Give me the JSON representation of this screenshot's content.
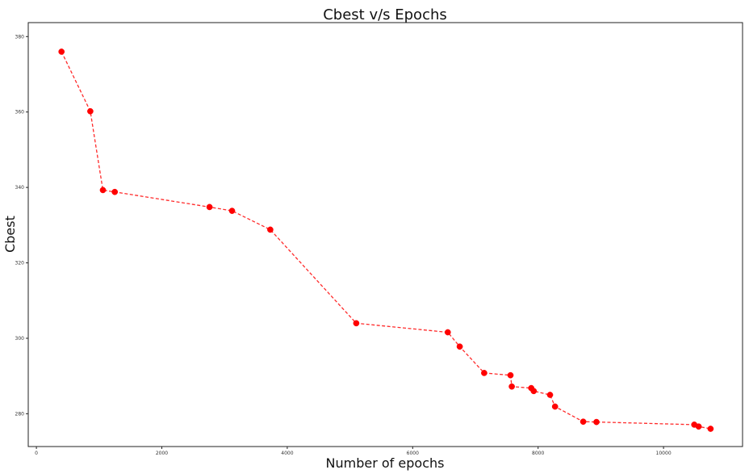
{
  "chart_data": {
    "type": "line",
    "title": "Cbest v/s Epochs",
    "xlabel": "Number of epochs",
    "ylabel": "Cbest",
    "xlim": [
      -130,
      11260
    ],
    "ylim": [
      271.3,
      383.7
    ],
    "xticks": [
      0,
      2000,
      4000,
      6000,
      8000,
      10000
    ],
    "yticks": [
      280,
      300,
      320,
      340,
      360,
      380
    ],
    "grid": false,
    "legend": "none",
    "line_style": "dashed",
    "marker": "circle",
    "colors": {
      "series": "#ff0000"
    },
    "series": [
      {
        "x": [
          400,
          860,
          1060,
          1250,
          2760,
          3120,
          3730,
          5100,
          6560,
          6750,
          7140,
          7560,
          7580,
          7890,
          7930,
          8190,
          8270,
          8720,
          8930,
          10490,
          10560,
          10750
        ],
        "y": [
          376.0,
          360.2,
          339.3,
          338.8,
          334.8,
          333.8,
          328.8,
          304.0,
          301.6,
          297.8,
          290.8,
          290.2,
          287.2,
          286.8,
          286.0,
          285.0,
          281.9,
          277.9,
          277.8,
          277.1,
          276.6,
          276.0
        ]
      }
    ]
  }
}
